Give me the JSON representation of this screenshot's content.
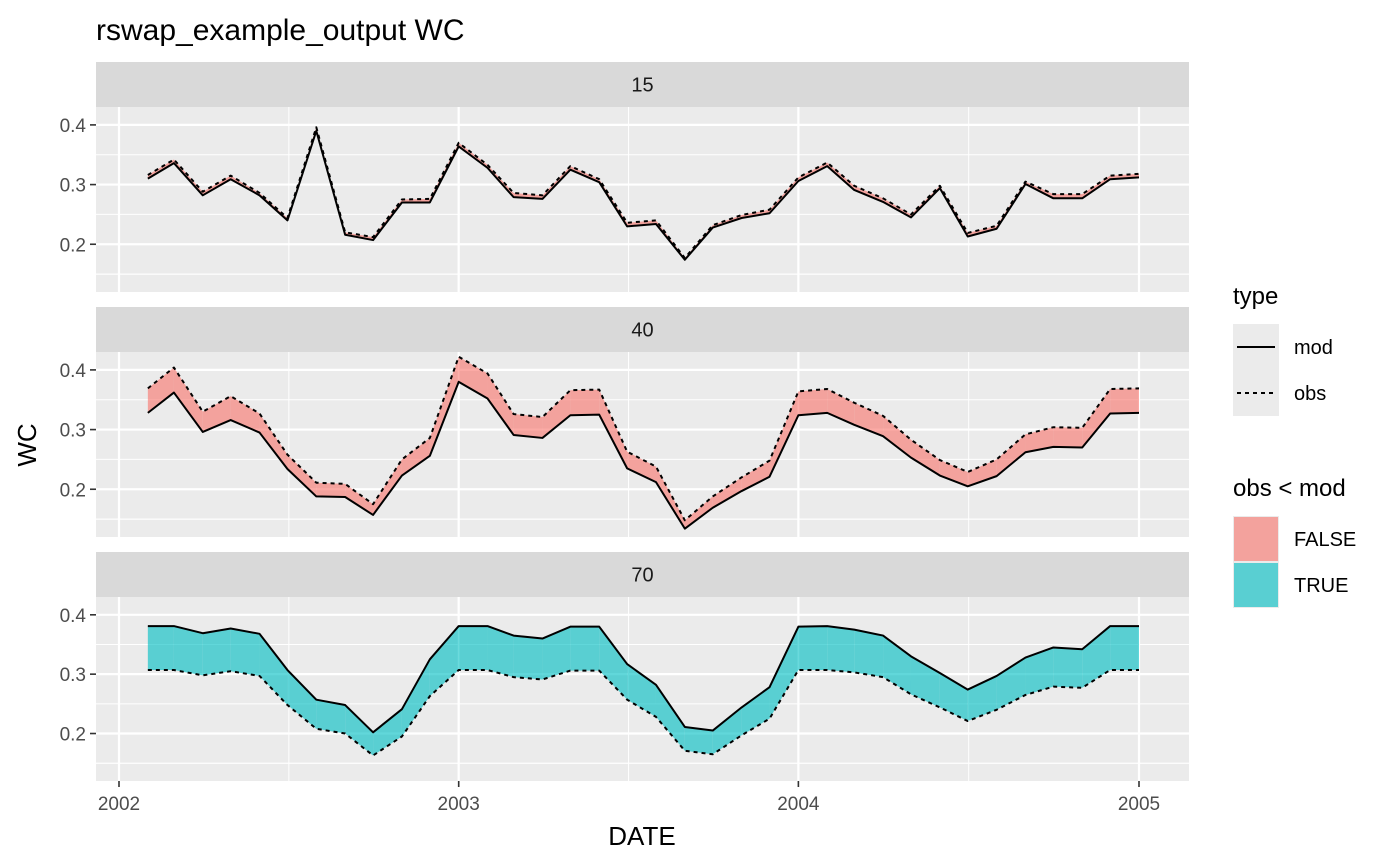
{
  "chart_data": {
    "type": "line",
    "title": "rswap_example_output WC",
    "xlabel": "DATE",
    "ylabel": "WC",
    "x_ticks": [
      "2002",
      "2003",
      "2004",
      "2005"
    ],
    "y_ticks": [
      "0.2",
      "0.3",
      "0.4"
    ],
    "ylim": [
      0.12,
      0.43
    ],
    "grid": true,
    "x": [
      "2002-02-01",
      "2002-03-01",
      "2002-04-01",
      "2002-05-01",
      "2002-06-01",
      "2002-07-01",
      "2002-08-01",
      "2002-09-01",
      "2002-10-01",
      "2002-11-01",
      "2002-12-01",
      "2003-01-01",
      "2003-02-01",
      "2003-03-01",
      "2003-04-01",
      "2003-05-01",
      "2003-06-01",
      "2003-07-01",
      "2003-08-01",
      "2003-09-01",
      "2003-10-01",
      "2003-11-01",
      "2003-12-01",
      "2004-01-01",
      "2004-02-01",
      "2004-03-01",
      "2004-04-01",
      "2004-05-01",
      "2004-06-01",
      "2004-07-01",
      "2004-08-01",
      "2004-09-01",
      "2004-10-01",
      "2004-11-01",
      "2004-12-01",
      "2005-01-01"
    ],
    "facets": [
      {
        "label": "15",
        "mod": [
          0.31,
          0.336,
          0.282,
          0.309,
          0.282,
          0.24,
          0.39,
          0.216,
          0.207,
          0.27,
          0.27,
          0.364,
          0.328,
          0.279,
          0.276,
          0.325,
          0.304,
          0.23,
          0.234,
          0.174,
          0.228,
          0.244,
          0.252,
          0.306,
          0.331,
          0.291,
          0.271,
          0.245,
          0.294,
          0.213,
          0.226,
          0.301,
          0.277,
          0.277,
          0.309,
          0.312
        ],
        "obs": [
          0.316,
          0.342,
          0.288,
          0.315,
          0.286,
          0.244,
          0.396,
          0.22,
          0.212,
          0.275,
          0.276,
          0.37,
          0.333,
          0.286,
          0.282,
          0.331,
          0.309,
          0.236,
          0.24,
          0.177,
          0.232,
          0.249,
          0.258,
          0.312,
          0.337,
          0.298,
          0.277,
          0.25,
          0.298,
          0.219,
          0.231,
          0.305,
          0.284,
          0.284,
          0.315,
          0.318
        ]
      },
      {
        "label": "40",
        "mod": [
          0.328,
          0.362,
          0.296,
          0.316,
          0.295,
          0.234,
          0.188,
          0.187,
          0.157,
          0.223,
          0.256,
          0.38,
          0.352,
          0.291,
          0.286,
          0.324,
          0.325,
          0.235,
          0.212,
          0.134,
          0.169,
          0.197,
          0.221,
          0.324,
          0.328,
          0.308,
          0.289,
          0.253,
          0.223,
          0.205,
          0.222,
          0.262,
          0.271,
          0.27,
          0.327,
          0.328
        ],
        "obs": [
          0.369,
          0.404,
          0.33,
          0.356,
          0.327,
          0.258,
          0.211,
          0.209,
          0.175,
          0.25,
          0.286,
          0.422,
          0.394,
          0.326,
          0.321,
          0.366,
          0.367,
          0.263,
          0.238,
          0.148,
          0.188,
          0.22,
          0.248,
          0.364,
          0.368,
          0.345,
          0.323,
          0.283,
          0.249,
          0.229,
          0.25,
          0.292,
          0.304,
          0.303,
          0.368,
          0.369
        ]
      },
      {
        "label": "70",
        "mod": [
          0.381,
          0.381,
          0.369,
          0.377,
          0.368,
          0.307,
          0.257,
          0.248,
          0.202,
          0.241,
          0.325,
          0.381,
          0.381,
          0.365,
          0.36,
          0.38,
          0.38,
          0.317,
          0.282,
          0.211,
          0.205,
          0.244,
          0.278,
          0.38,
          0.381,
          0.375,
          0.365,
          0.33,
          0.302,
          0.274,
          0.297,
          0.328,
          0.345,
          0.342,
          0.381,
          0.381
        ],
        "obs": [
          0.307,
          0.307,
          0.298,
          0.305,
          0.297,
          0.248,
          0.208,
          0.2,
          0.163,
          0.195,
          0.263,
          0.307,
          0.307,
          0.295,
          0.291,
          0.306,
          0.306,
          0.257,
          0.228,
          0.171,
          0.165,
          0.197,
          0.225,
          0.307,
          0.307,
          0.303,
          0.295,
          0.266,
          0.244,
          0.221,
          0.24,
          0.265,
          0.279,
          0.277,
          0.307,
          0.307
        ]
      }
    ],
    "legend": {
      "type_title": "type",
      "type_items": [
        "mod",
        "obs"
      ],
      "fill_title": "obs < mod",
      "fill_items": [
        {
          "label": "FALSE",
          "color": "#F8766D"
        },
        {
          "label": "TRUE",
          "color": "#00BFC4"
        }
      ],
      "placement": "right"
    },
    "colors": {
      "panel_bg": "#EBEBEB",
      "strip_bg": "#D9D9D9",
      "grid_major": "#FFFFFF",
      "false_fill": "#F8766D",
      "true_fill": "#00BFC4",
      "line": "#000000"
    }
  }
}
